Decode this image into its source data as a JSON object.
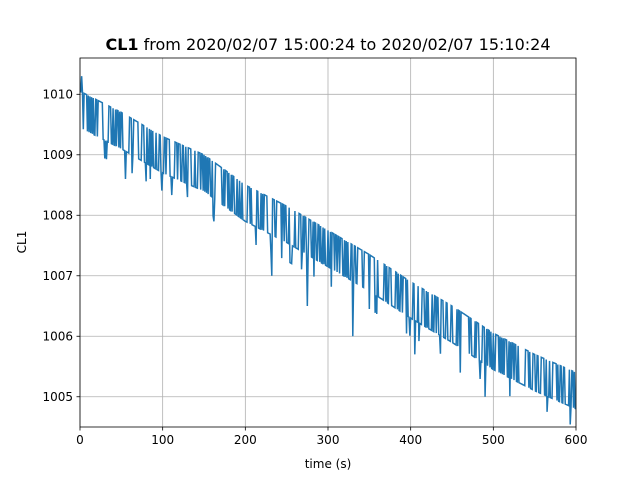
{
  "chart_data": {
    "type": "line",
    "title": {
      "series_label": "CL1",
      "rest": " from 2020/02/07 15:00:24 to 2020/02/07 15:10:24"
    },
    "xlabel": "time (s)",
    "ylabel": "CL1",
    "xlim": [
      0,
      600
    ],
    "ylim": [
      1004.5,
      1010.6
    ],
    "x_ticks": [
      0,
      100,
      200,
      300,
      400,
      500,
      600
    ],
    "y_ticks": [
      1005,
      1006,
      1007,
      1008,
      1009,
      1010
    ],
    "grid": true,
    "line_color": "#1f77b4",
    "signal": {
      "sample_interval_s": 1,
      "quantization_step": 0.6,
      "noise_band": 0.6,
      "trend_points": [
        {
          "x": 0,
          "y": 1009.75
        },
        {
          "x": 50,
          "y": 1009.4
        },
        {
          "x": 100,
          "y": 1009.0
        },
        {
          "x": 150,
          "y": 1008.7
        },
        {
          "x": 200,
          "y": 1008.2
        },
        {
          "x": 250,
          "y": 1007.85
        },
        {
          "x": 300,
          "y": 1007.45
        },
        {
          "x": 350,
          "y": 1007.05
        },
        {
          "x": 400,
          "y": 1006.6
        },
        {
          "x": 450,
          "y": 1006.2
        },
        {
          "x": 500,
          "y": 1005.75
        },
        {
          "x": 550,
          "y": 1005.4
        },
        {
          "x": 600,
          "y": 1005.1
        }
      ],
      "spikes": [
        {
          "x": 2,
          "y": 1010.3
        },
        {
          "x": 55,
          "y": 1008.6
        },
        {
          "x": 85,
          "y": 1008.6
        },
        {
          "x": 130,
          "y": 1008.3
        },
        {
          "x": 162,
          "y": 1007.9
        },
        {
          "x": 232,
          "y": 1007.0
        },
        {
          "x": 275,
          "y": 1006.5
        },
        {
          "x": 330,
          "y": 1006.0
        },
        {
          "x": 405,
          "y": 1005.7
        },
        {
          "x": 460,
          "y": 1005.4
        },
        {
          "x": 490,
          "y": 1005.0
        },
        {
          "x": 565,
          "y": 1004.75
        }
      ]
    }
  }
}
